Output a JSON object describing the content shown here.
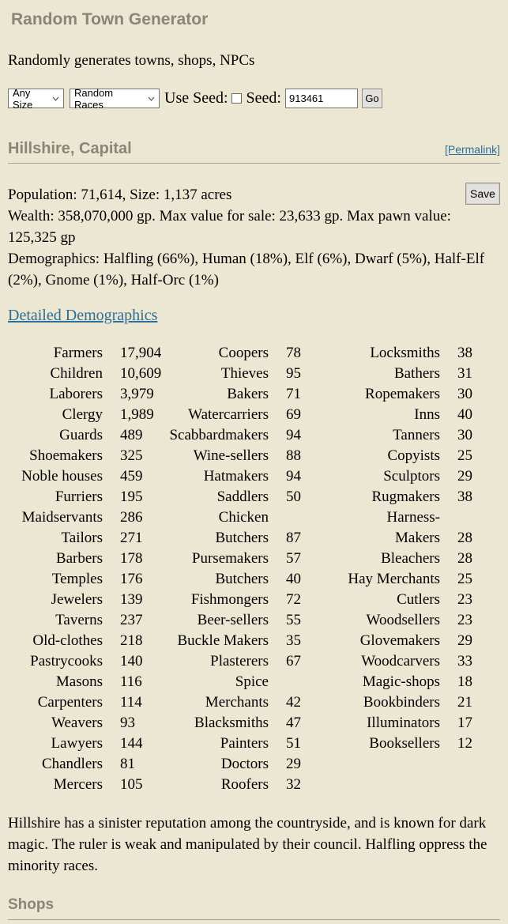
{
  "page": {
    "title": "Random Town Generator",
    "subtitle": "Randomly generates towns, shops, NPCs"
  },
  "controls": {
    "size_select_value": "Any Size",
    "races_select_value": "Random Races",
    "use_seed_label": "Use Seed:",
    "seed_label": "Seed:",
    "seed_value": "913461",
    "go_label": "Go"
  },
  "town": {
    "heading": "Hillshire, Capital",
    "permalink_label": "[Permalink]",
    "save_label": "Save",
    "population_line": "Population: 71,614, Size: 1,137 acres",
    "wealth_line": "Wealth: 358,070,000 gp. Max value for sale: 23,633 gp. Max pawn value: 125,325 gp",
    "demographics_line": "Demographics: Halfling (66%), Human (18%), Elf (6%), Dwarf (5%), Half-Elf (2%), Gnome (1%), Half-Orc (1%)",
    "detailed_demographics_link": "Detailed Demographics",
    "description": "Hillshire has a sinister reputation among the countryside, and is known for dark magic. The ruler is weak and manipulated by their council. Halfling oppress the minority races."
  },
  "demographics_table": {
    "rows": [
      [
        "Farmers",
        "17,904",
        "Coopers",
        "78",
        "Locksmiths",
        "38"
      ],
      [
        "Children",
        "10,609",
        "Thieves",
        "95",
        "Bathers",
        "31"
      ],
      [
        "Laborers",
        "3,979",
        "Bakers",
        "71",
        "Ropemakers",
        "30"
      ],
      [
        "Clergy",
        "1,989",
        "Watercarriers",
        "69",
        "Inns",
        "40"
      ],
      [
        "Guards",
        "489",
        "Scabbardmakers",
        "94",
        "Tanners",
        "30"
      ],
      [
        "Shoemakers",
        "325",
        "Wine-sellers",
        "88",
        "Copyists",
        "25"
      ],
      [
        "Noble houses",
        "459",
        "Hatmakers",
        "94",
        "Sculptors",
        "29"
      ],
      [
        "Furriers",
        "195",
        "Saddlers",
        "50",
        "Rugmakers",
        "38"
      ],
      [
        "Maidservants",
        "286",
        "Chicken",
        "",
        "Harness-",
        ""
      ],
      [
        "Tailors",
        "271",
        "Butchers",
        "87",
        "Makers",
        "28"
      ],
      [
        "Barbers",
        "178",
        "Pursemakers",
        "57",
        "Bleachers",
        "28"
      ],
      [
        "Temples",
        "176",
        "Butchers",
        "40",
        "Hay Merchants",
        "25"
      ],
      [
        "Jewelers",
        "139",
        "Fishmongers",
        "72",
        "Cutlers",
        "23"
      ],
      [
        "Taverns",
        "237",
        "Beer-sellers",
        "55",
        "Woodsellers",
        "23"
      ],
      [
        "Old-clothes",
        "218",
        "Buckle Makers",
        "35",
        "Glovemakers",
        "29"
      ],
      [
        "Pastrycooks",
        "140",
        "Plasterers",
        "67",
        "Woodcarvers",
        "33"
      ],
      [
        "Masons",
        "116",
        "Spice",
        "",
        "Magic-shops",
        "18"
      ],
      [
        "Carpenters",
        "114",
        "Merchants",
        "42",
        "Bookbinders",
        "21"
      ],
      [
        "Weavers",
        "93",
        "Blacksmiths",
        "47",
        "Illuminators",
        "17"
      ],
      [
        "Lawyers",
        "144",
        "Painters",
        "51",
        "Booksellers",
        "12"
      ],
      [
        "Chandlers",
        "81",
        "Doctors",
        "29",
        "",
        ""
      ],
      [
        "Mercers",
        "105",
        "Roofers",
        "32",
        "",
        ""
      ]
    ]
  },
  "shops_section": {
    "heading": "Shops"
  },
  "colors": {
    "background": "#ece7d2",
    "heading_text": "#8a8577",
    "link": "#2d6e97",
    "divider": "#a6a191"
  }
}
